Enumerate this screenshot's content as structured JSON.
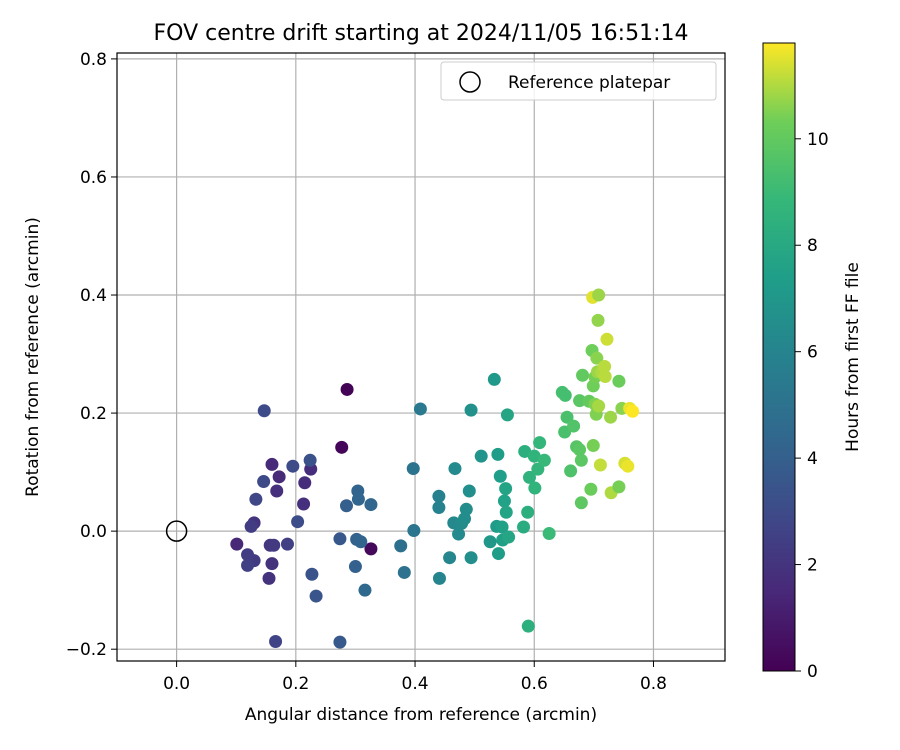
{
  "chart_data": {
    "type": "scatter",
    "title": "FOV centre drift starting at 2024/11/05 16:51:14",
    "xlabel": "Angular distance from reference (arcmin)",
    "ylabel": "Rotation from reference (arcmin)",
    "xlim": [
      -0.1,
      0.92
    ],
    "ylim": [
      -0.22,
      0.81
    ],
    "xticks": [
      0.0,
      0.2,
      0.4,
      0.6,
      0.8
    ],
    "xtick_labels": [
      "0.0",
      "0.2",
      "0.4",
      "0.6",
      "0.8"
    ],
    "yticks": [
      -0.2,
      0.0,
      0.2,
      0.4,
      0.6,
      0.8
    ],
    "ytick_labels": [
      "−0.2",
      "0.0",
      "0.2",
      "0.4",
      "0.6",
      "0.8"
    ],
    "grid": true,
    "legend": {
      "placement": "top-right",
      "entries": [
        {
          "label": "Reference platepar",
          "marker": "hollow-circle"
        }
      ]
    },
    "reference_point": {
      "x": 0.0,
      "y": 0.0
    },
    "colorbar": {
      "label": "Hours from first FF file",
      "colormap": "viridis",
      "range": [
        0,
        11.8
      ],
      "ticks": [
        0,
        2,
        4,
        6,
        8,
        10
      ],
      "tick_labels": [
        "0",
        "2",
        "4",
        "6",
        "8",
        "10"
      ]
    },
    "points": [
      {
        "x": 0.286,
        "y": 0.24,
        "c": 0.1
      },
      {
        "x": 0.277,
        "y": 0.142,
        "c": 0.2
      },
      {
        "x": 0.326,
        "y": -0.03,
        "c": 0.3
      },
      {
        "x": 0.101,
        "y": -0.022,
        "c": 1.5
      },
      {
        "x": 0.16,
        "y": 0.113,
        "c": 1.6
      },
      {
        "x": 0.172,
        "y": 0.092,
        "c": 1.6
      },
      {
        "x": 0.215,
        "y": 0.082,
        "c": 1.7
      },
      {
        "x": 0.225,
        "y": 0.105,
        "c": 1.7
      },
      {
        "x": 0.213,
        "y": 0.046,
        "c": 1.8
      },
      {
        "x": 0.168,
        "y": 0.068,
        "c": 1.8
      },
      {
        "x": 0.155,
        "y": -0.08,
        "c": 1.9
      },
      {
        "x": 0.16,
        "y": -0.055,
        "c": 1.9
      },
      {
        "x": 0.13,
        "y": 0.014,
        "c": 2.0
      },
      {
        "x": 0.157,
        "y": -0.024,
        "c": 2.1
      },
      {
        "x": 0.163,
        "y": -0.024,
        "c": 2.2
      },
      {
        "x": 0.13,
        "y": -0.05,
        "c": 2.3
      },
      {
        "x": 0.119,
        "y": -0.04,
        "c": 2.4
      },
      {
        "x": 0.125,
        "y": 0.008,
        "c": 2.4
      },
      {
        "x": 0.186,
        "y": -0.022,
        "c": 2.5
      },
      {
        "x": 0.119,
        "y": -0.058,
        "c": 2.5
      },
      {
        "x": 0.166,
        "y": -0.187,
        "c": 2.7
      },
      {
        "x": 0.133,
        "y": 0.054,
        "c": 2.8
      },
      {
        "x": 0.146,
        "y": 0.084,
        "c": 2.9
      },
      {
        "x": 0.147,
        "y": 0.204,
        "c": 3.0
      },
      {
        "x": 0.195,
        "y": 0.11,
        "c": 3.0
      },
      {
        "x": 0.203,
        "y": 0.016,
        "c": 3.1
      },
      {
        "x": 0.224,
        "y": 0.12,
        "c": 3.3
      },
      {
        "x": 0.227,
        "y": -0.073,
        "c": 3.4
      },
      {
        "x": 0.234,
        "y": -0.11,
        "c": 3.5
      },
      {
        "x": 0.274,
        "y": -0.013,
        "c": 3.6
      },
      {
        "x": 0.274,
        "y": -0.188,
        "c": 3.7
      },
      {
        "x": 0.285,
        "y": 0.043,
        "c": 4.0
      },
      {
        "x": 0.3,
        "y": -0.06,
        "c": 4.1
      },
      {
        "x": 0.302,
        "y": -0.014,
        "c": 4.2
      },
      {
        "x": 0.309,
        "y": -0.018,
        "c": 4.3
      },
      {
        "x": 0.304,
        "y": 0.068,
        "c": 4.3
      },
      {
        "x": 0.305,
        "y": 0.054,
        "c": 4.4
      },
      {
        "x": 0.326,
        "y": 0.045,
        "c": 4.4
      },
      {
        "x": 0.316,
        "y": -0.1,
        "c": 4.5
      },
      {
        "x": 0.376,
        "y": -0.025,
        "c": 4.9
      },
      {
        "x": 0.382,
        "y": -0.07,
        "c": 5.0
      },
      {
        "x": 0.397,
        "y": 0.106,
        "c": 5.1
      },
      {
        "x": 0.398,
        "y": 0.001,
        "c": 5.2
      },
      {
        "x": 0.409,
        "y": 0.207,
        "c": 5.4
      },
      {
        "x": 0.44,
        "y": 0.059,
        "c": 5.8
      },
      {
        "x": 0.44,
        "y": 0.04,
        "c": 5.9
      },
      {
        "x": 0.441,
        "y": -0.08,
        "c": 6.0
      },
      {
        "x": 0.458,
        "y": -0.045,
        "c": 6.1
      },
      {
        "x": 0.465,
        "y": 0.014,
        "c": 6.2
      },
      {
        "x": 0.467,
        "y": 0.106,
        "c": 6.3
      },
      {
        "x": 0.473,
        "y": -0.005,
        "c": 6.3
      },
      {
        "x": 0.478,
        "y": 0.013,
        "c": 6.4
      },
      {
        "x": 0.483,
        "y": 0.021,
        "c": 6.5
      },
      {
        "x": 0.486,
        "y": 0.037,
        "c": 6.5
      },
      {
        "x": 0.491,
        "y": 0.068,
        "c": 6.6
      },
      {
        "x": 0.494,
        "y": -0.045,
        "c": 6.6
      },
      {
        "x": 0.494,
        "y": 0.205,
        "c": 6.7
      },
      {
        "x": 0.511,
        "y": 0.127,
        "c": 6.9
      },
      {
        "x": 0.526,
        "y": -0.018,
        "c": 7.0
      },
      {
        "x": 0.533,
        "y": 0.257,
        "c": 7.1
      },
      {
        "x": 0.537,
        "y": 0.008,
        "c": 7.2
      },
      {
        "x": 0.54,
        "y": -0.038,
        "c": 7.3
      },
      {
        "x": 0.539,
        "y": 0.13,
        "c": 7.3
      },
      {
        "x": 0.543,
        "y": 0.093,
        "c": 7.4
      },
      {
        "x": 0.547,
        "y": -0.015,
        "c": 7.5
      },
      {
        "x": 0.546,
        "y": 0.007,
        "c": 7.5
      },
      {
        "x": 0.55,
        "y": 0.051,
        "c": 7.6
      },
      {
        "x": 0.552,
        "y": 0.072,
        "c": 7.7
      },
      {
        "x": 0.553,
        "y": 0.032,
        "c": 7.7
      },
      {
        "x": 0.555,
        "y": 0.197,
        "c": 7.8
      },
      {
        "x": 0.557,
        "y": -0.01,
        "c": 7.8
      },
      {
        "x": 0.582,
        "y": 0.007,
        "c": 8.2
      },
      {
        "x": 0.584,
        "y": 0.135,
        "c": 8.3
      },
      {
        "x": 0.589,
        "y": 0.032,
        "c": 8.3
      },
      {
        "x": 0.59,
        "y": -0.161,
        "c": 8.4
      },
      {
        "x": 0.592,
        "y": 0.091,
        "c": 8.5
      },
      {
        "x": 0.601,
        "y": 0.073,
        "c": 8.6
      },
      {
        "x": 0.6,
        "y": 0.127,
        "c": 8.6
      },
      {
        "x": 0.606,
        "y": 0.105,
        "c": 8.7
      },
      {
        "x": 0.609,
        "y": 0.15,
        "c": 8.8
      },
      {
        "x": 0.617,
        "y": 0.12,
        "c": 8.9
      },
      {
        "x": 0.625,
        "y": -0.004,
        "c": 9.0
      },
      {
        "x": 0.647,
        "y": 0.235,
        "c": 9.3
      },
      {
        "x": 0.652,
        "y": 0.23,
        "c": 9.3
      },
      {
        "x": 0.651,
        "y": 0.168,
        "c": 9.4
      },
      {
        "x": 0.655,
        "y": 0.193,
        "c": 9.4
      },
      {
        "x": 0.661,
        "y": 0.102,
        "c": 9.5
      },
      {
        "x": 0.666,
        "y": 0.178,
        "c": 9.6
      },
      {
        "x": 0.671,
        "y": 0.143,
        "c": 9.7
      },
      {
        "x": 0.676,
        "y": 0.221,
        "c": 9.8
      },
      {
        "x": 0.676,
        "y": 0.138,
        "c": 9.8
      },
      {
        "x": 0.679,
        "y": 0.12,
        "c": 9.8
      },
      {
        "x": 0.679,
        "y": 0.048,
        "c": 9.9
      },
      {
        "x": 0.681,
        "y": 0.264,
        "c": 10.0
      },
      {
        "x": 0.692,
        "y": 0.22,
        "c": 10.1
      },
      {
        "x": 0.695,
        "y": 0.071,
        "c": 10.2
      },
      {
        "x": 0.697,
        "y": 0.306,
        "c": 10.3
      },
      {
        "x": 0.699,
        "y": 0.246,
        "c": 10.3
      },
      {
        "x": 0.699,
        "y": 0.145,
        "c": 10.4
      },
      {
        "x": 0.702,
        "y": 0.261,
        "c": 10.4
      },
      {
        "x": 0.702,
        "y": 0.215,
        "c": 10.5
      },
      {
        "x": 0.704,
        "y": 0.198,
        "c": 10.5
      },
      {
        "x": 0.705,
        "y": 0.293,
        "c": 10.6
      },
      {
        "x": 0.707,
        "y": 0.357,
        "c": 10.7
      },
      {
        "x": 0.706,
        "y": 0.27,
        "c": 10.8
      },
      {
        "x": 0.708,
        "y": 0.212,
        "c": 10.9
      },
      {
        "x": 0.713,
        "y": 0.269,
        "c": 11.0
      },
      {
        "x": 0.718,
        "y": 0.279,
        "c": 11.1
      },
      {
        "x": 0.719,
        "y": 0.262,
        "c": 11.1
      },
      {
        "x": 0.722,
        "y": 0.325,
        "c": 11.3
      },
      {
        "x": 0.728,
        "y": 0.193,
        "c": 10.8
      },
      {
        "x": 0.711,
        "y": 0.112,
        "c": 11.2
      },
      {
        "x": 0.729,
        "y": 0.065,
        "c": 11.0
      },
      {
        "x": 0.742,
        "y": 0.075,
        "c": 10.4
      },
      {
        "x": 0.742,
        "y": 0.254,
        "c": 10.2
      },
      {
        "x": 0.747,
        "y": 0.208,
        "c": 10.6
      },
      {
        "x": 0.752,
        "y": 0.115,
        "c": 11.4
      },
      {
        "x": 0.757,
        "y": 0.11,
        "c": 11.6
      },
      {
        "x": 0.76,
        "y": 0.208,
        "c": 11.6
      },
      {
        "x": 0.765,
        "y": 0.203,
        "c": 11.8
      },
      {
        "x": 0.698,
        "y": 0.396,
        "c": 11.5
      },
      {
        "x": 0.708,
        "y": 0.4,
        "c": 10.8
      }
    ]
  }
}
